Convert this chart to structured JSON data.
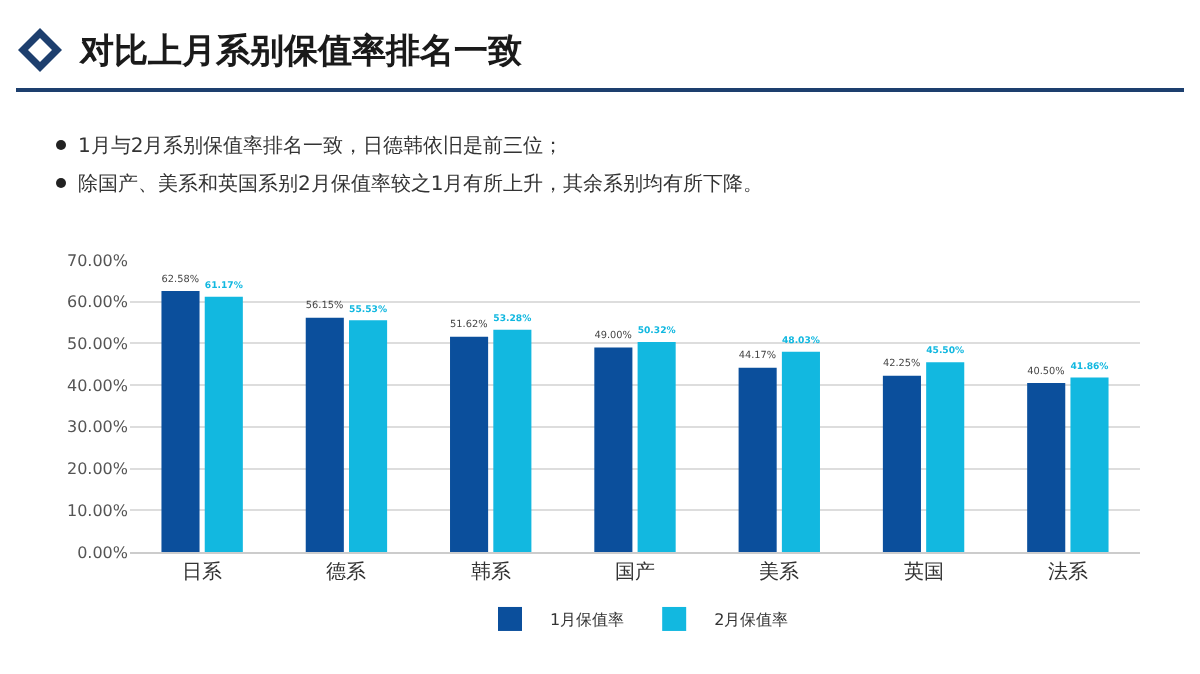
{
  "chart_data": {
    "type": "bar",
    "title": "对比上月系别保值率排名一致",
    "annotations": [
      "1月与2月系别保值率排名一致，日德韩依旧是前三位；",
      "除国产、美系和英国系别2月保值率较之1月有所上升，其余系别均有所下降。"
    ],
    "categories": [
      "日系",
      "德系",
      "韩系",
      "国产",
      "美系",
      "英国",
      "法系"
    ],
    "series": [
      {
        "name": "1月保值率",
        "color": "#0b4f9c",
        "values": [
          62.58,
          56.15,
          51.62,
          49.0,
          44.17,
          42.25,
          40.5
        ],
        "value_labels": [
          "62.58%",
          "56.15%",
          "51.62%",
          "49.00%",
          "44.17%",
          "42.25%",
          "40.50%"
        ]
      },
      {
        "name": "2月保值率",
        "color": "#12b8e0",
        "values": [
          61.17,
          55.53,
          53.28,
          50.32,
          48.03,
          45.5,
          41.86
        ],
        "value_labels": [
          "61.17%",
          "55.53%",
          "53.28%",
          "50.32%",
          "48.03%",
          "45.50%",
          "41.86%"
        ]
      }
    ],
    "ylim": [
      0,
      70
    ],
    "yticks": [
      {
        "value": 0,
        "label": "0.00%"
      },
      {
        "value": 10,
        "label": "10.00%"
      },
      {
        "value": 20,
        "label": "20.00%"
      },
      {
        "value": 30,
        "label": "30.00%"
      },
      {
        "value": 40,
        "label": "40.00%"
      },
      {
        "value": 50,
        "label": "50.00%"
      },
      {
        "value": 60,
        "label": "60.00%"
      },
      {
        "value": 70,
        "label": "70.00%"
      }
    ],
    "grid": "y",
    "legend": "bottom"
  }
}
